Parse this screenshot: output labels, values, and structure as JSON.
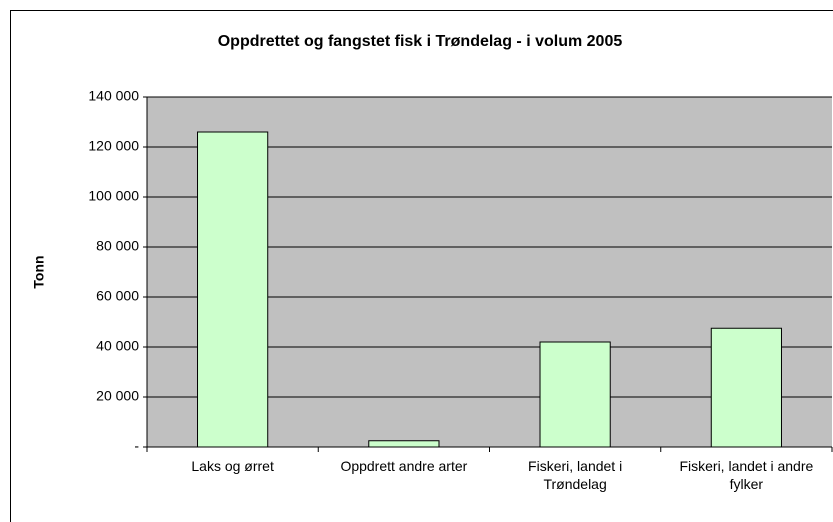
{
  "chart_data": {
    "type": "bar",
    "title": "Oppdrettet og fangstet fisk i Trøndelag - i volum 2005",
    "ylabel": "Tonn",
    "categories": [
      "Laks og ørret",
      "Oppdrett andre arter",
      "Fiskeri, landet i Trøndelag",
      "Fiskeri, landet i andre fylker"
    ],
    "values": [
      126000,
      2500,
      42000,
      47500
    ],
    "color": "#ccffcc",
    "plot_background": "#c0c0c0",
    "ylim": [
      0,
      140000
    ],
    "yticks": [
      {
        "value": 0,
        "label": "-"
      },
      {
        "value": 20000,
        "label": "20 000"
      },
      {
        "value": 40000,
        "label": "40 000"
      },
      {
        "value": 60000,
        "label": "60 000"
      },
      {
        "value": 80000,
        "label": "80 000"
      },
      {
        "value": 100000,
        "label": "100 000"
      },
      {
        "value": 120000,
        "label": "120 000"
      },
      {
        "value": 140000,
        "label": "140 000"
      }
    ],
    "grid": true
  }
}
